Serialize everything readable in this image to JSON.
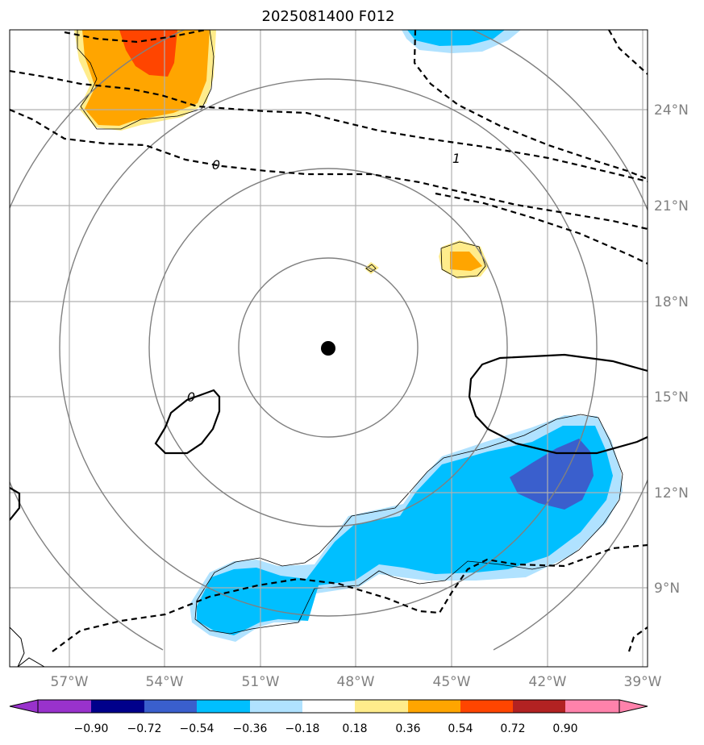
{
  "chart_data": {
    "type": "map",
    "title": "2025081400 F012",
    "center_marker": {
      "lon": -49.0,
      "lat": 16.5
    },
    "lon_range": [
      -58.8,
      -38.9
    ],
    "lat_range": [
      6.7,
      26.0
    ],
    "x_ticks": [
      {
        "lon": -57,
        "label": "57°W"
      },
      {
        "lon": -54,
        "label": "54°W"
      },
      {
        "lon": -51,
        "label": "51°W"
      },
      {
        "lon": -48,
        "label": "48°W"
      },
      {
        "lon": -45,
        "label": "45°W"
      },
      {
        "lon": -42,
        "label": "42°W"
      },
      {
        "lon": -39,
        "label": "39°W"
      }
    ],
    "y_ticks": [
      {
        "lat": 24,
        "label": "24°N"
      },
      {
        "lat": 21,
        "label": "21°N"
      },
      {
        "lat": 18,
        "label": "18°N"
      },
      {
        "lat": 15,
        "label": "15°N"
      },
      {
        "lat": 12,
        "label": "12°N"
      },
      {
        "lat": 9,
        "label": "9°N"
      }
    ],
    "grid": true,
    "range_rings_deg": [
      2.8,
      5.6,
      8.4
    ],
    "contour_labels": [
      {
        "text": "0",
        "lon": -52.9,
        "lat": 22.2
      },
      {
        "text": "1",
        "lon": -44.8,
        "lat": 22.5
      },
      {
        "text": "0",
        "lon": -53.2,
        "lat": 15.0
      }
    ],
    "colorbar": {
      "colors": [
        "#9932CC",
        "#00008B",
        "#3A5FCD",
        "#00BFFF",
        "#B0E2FF",
        "#FFFFFF",
        "#FFEC8B",
        "#FFA500",
        "#FF4500",
        "#B22222",
        "#FF82AB"
      ],
      "ticks": [
        "−0.90",
        "−0.72",
        "−0.54",
        "−0.36",
        "−0.18",
        "0.18",
        "0.36",
        "0.54",
        "0.72",
        "0.90"
      ]
    }
  }
}
